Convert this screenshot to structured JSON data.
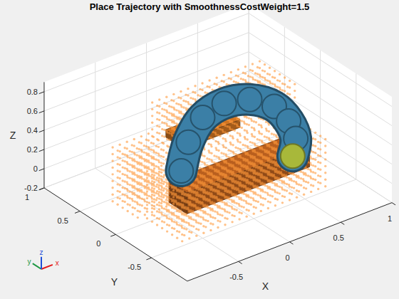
{
  "chart_data": {
    "type": "scatter3d",
    "title": "Place Trajectory with SmoothnessCostWeight=1.5",
    "xlabel": "X",
    "ylabel": "Y",
    "zlabel": "Z",
    "xlim": [
      -1,
      1
    ],
    "ylim": [
      -1,
      1
    ],
    "zlim": [
      -0.2,
      0.9
    ],
    "xticks": [
      -0.5,
      0,
      0.5,
      1
    ],
    "yticks": [
      -0.5,
      0,
      0.5,
      1
    ],
    "zticks": [
      -0.2,
      0,
      0.2,
      0.4,
      0.6,
      0.8
    ],
    "grid": true,
    "obstacles": [
      {
        "xlim": [
          -0.55,
          0.65
        ],
        "ylim": [
          -0.35,
          -0.1
        ],
        "zlim": [
          0,
          0.22
        ],
        "color": "#a0521a"
      },
      {
        "xlim": [
          -0.3,
          0.25
        ],
        "ylim": [
          0.05,
          0.3
        ],
        "zlim": [
          0.38,
          0.46
        ],
        "color": "#b5651d"
      }
    ],
    "occupancy": {
      "voxel_size": 0.07,
      "color": "#ff9a3c",
      "regions": [
        {
          "xlim": [
            -0.7,
            0.75
          ],
          "ylim": [
            -0.5,
            0.05
          ],
          "zlim": [
            -0.15,
            0.35
          ]
        },
        {
          "xlim": [
            -0.75,
            -0.35
          ],
          "ylim": [
            0.05,
            0.45
          ],
          "zlim": [
            -0.15,
            0.45
          ]
        },
        {
          "xlim": [
            -0.3,
            0.75
          ],
          "ylim": [
            0,
            0.5
          ],
          "zlim": [
            0.3,
            0.7
          ]
        }
      ]
    },
    "trajectory": {
      "x": [
        -0.36,
        -0.29,
        -0.15,
        0.06,
        0.31,
        0.55,
        0.69,
        0.76,
        0.73
      ],
      "y": [
        0,
        0,
        0,
        0,
        0,
        0,
        0,
        0,
        0
      ],
      "z": [
        0.2,
        0.47,
        0.67,
        0.73,
        0.67,
        0.5,
        0.29,
        0.08,
        -0.09
      ],
      "colors": [
        "#3b7fa6",
        "#3b7fa6",
        "#3b7fa6",
        "#3b7fa6",
        "#3b7fa6",
        "#3b7fa6",
        "#3b7fa6",
        "#3b7fa6",
        "#a8b83a"
      ]
    },
    "annotations": [
      "x",
      "y",
      "z"
    ]
  }
}
